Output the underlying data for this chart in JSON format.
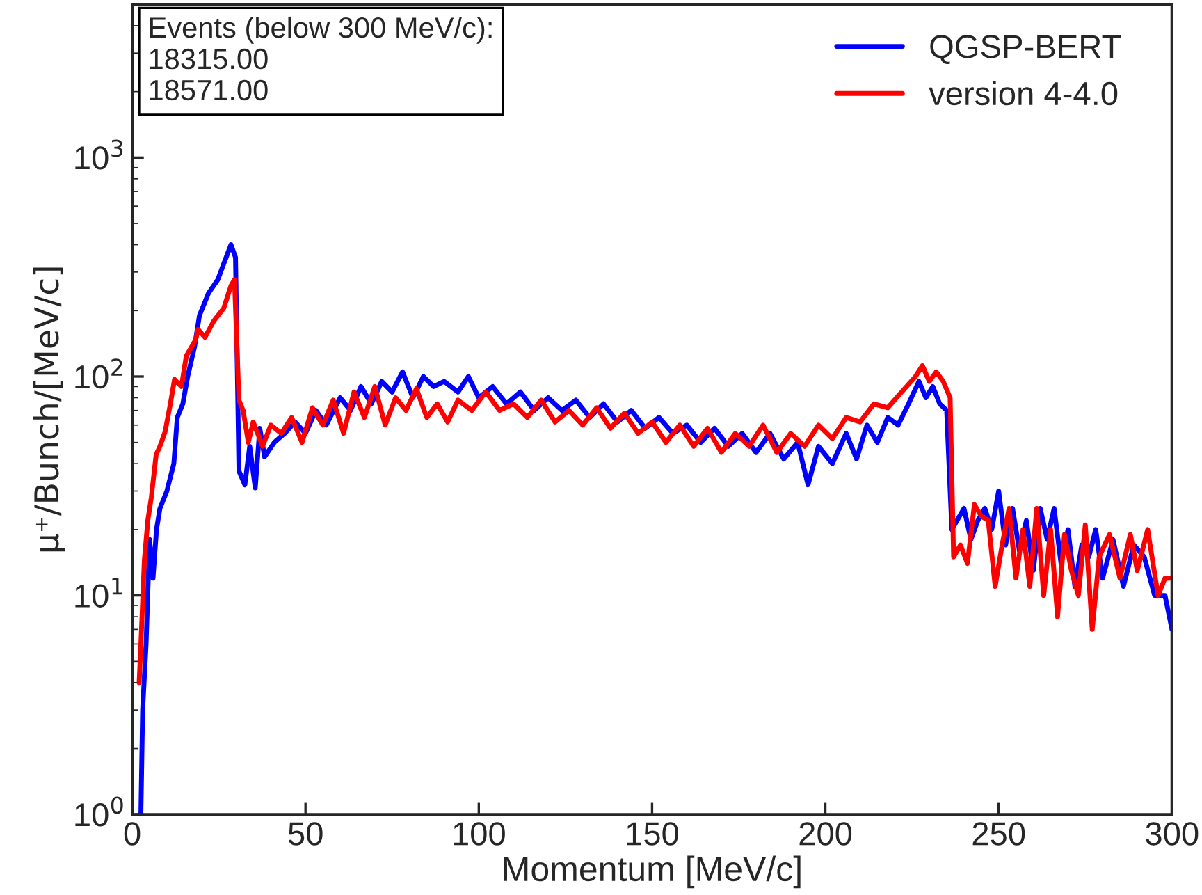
{
  "chart_data": {
    "type": "line",
    "xlabel": "Momentum [MeV/c]",
    "ylabel": "μ⁺/Bunch/[MeV/c]",
    "annotations": [
      "Events (below 300 MeV/c):\n18315.00\n18571.00"
    ],
    "log": "y",
    "grid": false,
    "legend": "top right",
    "marker": "none",
    "line_style": "solid",
    "xlim": [
      0,
      300
    ],
    "xticks": [
      0,
      50,
      100,
      150,
      200,
      250,
      300
    ],
    "ylim": [
      1,
      5000
    ],
    "yticks": [
      {
        "value": 1,
        "label": "10$^{0}$"
      },
      {
        "value": 10,
        "label": "10$^{1}$"
      },
      {
        "value": 100,
        "label": "10$^{2}$"
      },
      {
        "value": 1000,
        "label": "10$^{3}$"
      }
    ],
    "series": [
      {
        "name": "QGSP-BERT",
        "color": "#0000ff",
        "x": [
          2.5,
          3,
          4,
          5,
          6,
          7,
          8,
          10,
          12,
          13,
          14.6,
          16,
          18,
          19.4,
          22,
          24.7,
          26.7,
          28.5,
          29.8,
          30.8,
          32.5,
          33.9,
          35.5,
          36.8,
          38.2,
          41,
          44,
          47,
          50,
          53,
          56,
          60,
          63,
          66,
          69,
          72,
          75,
          78,
          81,
          84,
          87,
          90,
          94,
          97,
          100,
          104,
          108,
          112,
          116,
          120,
          124,
          128,
          132,
          136,
          140,
          144,
          148,
          152,
          156,
          160,
          164,
          168,
          172,
          176,
          180,
          184,
          188,
          192,
          195,
          198,
          202,
          206,
          209,
          212,
          215,
          218,
          221,
          224,
          227,
          229,
          231,
          233,
          235,
          236.5,
          238,
          240,
          242,
          244,
          246,
          248,
          250,
          252,
          254,
          256,
          258,
          260,
          262,
          264,
          266,
          268,
          270,
          272,
          274,
          276,
          278,
          280,
          283,
          286,
          289,
          292,
          295,
          298,
          300
        ],
        "values": [
          1,
          3,
          6,
          18,
          12,
          20,
          25,
          30,
          40,
          65,
          75,
          100,
          137,
          190,
          240,
          277,
          337,
          400,
          350,
          37,
          32,
          48,
          31,
          58,
          43,
          50,
          55,
          62,
          55,
          70,
          60,
          80,
          70,
          90,
          75,
          95,
          85,
          105,
          80,
          100,
          90,
          95,
          85,
          100,
          80,
          90,
          75,
          85,
          70,
          80,
          70,
          78,
          65,
          75,
          62,
          70,
          58,
          65,
          55,
          60,
          50,
          58,
          48,
          55,
          45,
          55,
          42,
          50,
          32,
          48,
          40,
          55,
          42,
          60,
          50,
          65,
          60,
          75,
          95,
          80,
          90,
          75,
          70,
          20,
          22,
          25,
          18,
          22,
          25,
          20,
          30,
          17,
          25,
          16,
          22,
          13,
          25,
          18,
          25,
          14,
          20,
          11,
          17,
          15,
          20,
          12,
          18,
          11,
          17,
          15,
          10,
          10,
          7
        ]
      },
      {
        "name": "version 4-4.0",
        "color": "#ff0000",
        "x": [
          2,
          2.5,
          3.5,
          4.5,
          5.5,
          6.9,
          8,
          9.5,
          11,
          12.2,
          14.2,
          15.6,
          18.3,
          19,
          21,
          23.6,
          26.4,
          28.5,
          29.5,
          30.8,
          32,
          33.5,
          34.9,
          37.6,
          40,
          43,
          46,
          49,
          52,
          55,
          58,
          61,
          64,
          67,
          70,
          73,
          76,
          79,
          82,
          85,
          88,
          91,
          94,
          98,
          102,
          106,
          110,
          114,
          118,
          122,
          126,
          130,
          134,
          138,
          142,
          146,
          150,
          154,
          158,
          162,
          166,
          170,
          174,
          178,
          182,
          186,
          190,
          194,
          198,
          202,
          206,
          210,
          214,
          218,
          222,
          226,
          228,
          230,
          232,
          234,
          236,
          237,
          239,
          241,
          243,
          245,
          247,
          249,
          251,
          253,
          255,
          257,
          259,
          261,
          263,
          265,
          267,
          269,
          271,
          273,
          275,
          277,
          279,
          282,
          285,
          288,
          290,
          293,
          296,
          298,
          300
        ],
        "values": [
          4,
          6,
          14.5,
          22,
          28,
          44,
          48,
          56,
          75,
          97,
          90,
          124,
          147,
          164,
          151,
          180,
          205,
          260,
          277,
          78,
          70,
          50,
          62,
          48,
          60,
          55,
          65,
          50,
          72,
          60,
          78,
          55,
          85,
          65,
          90,
          60,
          80,
          70,
          88,
          65,
          75,
          62,
          78,
          70,
          85,
          70,
          75,
          65,
          78,
          62,
          70,
          60,
          72,
          58,
          68,
          55,
          62,
          50,
          60,
          48,
          58,
          45,
          55,
          48,
          60,
          45,
          55,
          48,
          60,
          52,
          65,
          62,
          75,
          72,
          85,
          100,
          112,
          95,
          105,
          95,
          80,
          15,
          17,
          14,
          26,
          23,
          22,
          11,
          17,
          25,
          12,
          20,
          11,
          25,
          10,
          20,
          8,
          19,
          13,
          10,
          21,
          7,
          15,
          19,
          12,
          19,
          13,
          20,
          10,
          12,
          12
        ]
      }
    ]
  }
}
